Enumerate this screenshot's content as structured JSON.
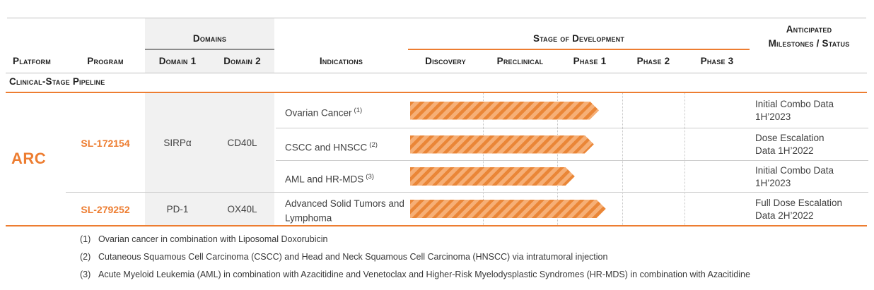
{
  "colors": {
    "accent": "#ED7D31",
    "arrow_stripe": "#EA8637",
    "arrow_base": "#F6AF76",
    "domains_column_bg": "#F1F1F1",
    "grid_line": "#BFBFBF"
  },
  "header": {
    "platform": "Platform",
    "program": "Program",
    "domains_group": "Domains",
    "domain1": "Domain 1",
    "domain2": "Domain 2",
    "indications": "Indications",
    "stage_group": "Stage of Development",
    "stages": [
      "Discovery",
      "Preclinical",
      "Phase 1",
      "Phase 2",
      "Phase 3"
    ],
    "milestones": "Anticipated Milestones / Status"
  },
  "section_title": "Clinical-Stage Pipeline",
  "platform_name": "ARC",
  "programs": [
    {
      "name": "SL-172154",
      "domain1": "SIRPα",
      "domain2": "CD40L"
    },
    {
      "name": "SL-279252",
      "domain1": "PD-1",
      "domain2": "OX40L"
    }
  ],
  "rows": [
    {
      "indication": "Ovarian Cancer",
      "footnote_ref": "(1)",
      "arrow_pct": 55.3,
      "milestone_line1": "Initial Combo Data",
      "milestone_line2": "1H’2023"
    },
    {
      "indication": "CSCC and HNSCC",
      "footnote_ref": "(2)",
      "arrow_pct": 53.8,
      "milestone_line1": "Dose Escalation",
      "milestone_line2": "Data 1H’2022"
    },
    {
      "indication": "AML and HR-MDS",
      "footnote_ref": "(3)",
      "arrow_pct": 48.2,
      "milestone_line1": "Initial Combo Data",
      "milestone_line2": "1H’2023"
    },
    {
      "indication": "Advanced Solid Tumors and Lymphoma",
      "footnote_ref": "",
      "arrow_pct": 57.3,
      "milestone_line1": "Full Dose Escalation",
      "milestone_line2": "Data 2H’2022"
    }
  ],
  "footnotes": [
    {
      "num": "(1)",
      "text": "Ovarian cancer in combination with Liposomal Doxorubicin"
    },
    {
      "num": "(2)",
      "text": "Cutaneous Squamous Cell Carcinoma (CSCC) and Head and Neck Squamous Cell Carcinoma (HNSCC) via intratumoral injection"
    },
    {
      "num": "(3)",
      "text": "Acute Myeloid Leukemia (AML) in combination with Azacitidine and Venetoclax and Higher-Risk Myelodysplastic Syndromes (HR-MDS) in combination with Azacitidine"
    }
  ],
  "chart_data": {
    "type": "bar",
    "title": "Clinical-Stage Pipeline",
    "stage_axis": [
      "Discovery",
      "Preclinical",
      "Phase 1",
      "Phase 2",
      "Phase 3"
    ],
    "grid": "dotted vertical lines at stage boundaries",
    "legend": false,
    "series": [
      {
        "platform": "ARC",
        "program": "SL-172154",
        "domains": [
          "SIRPα",
          "CD40L"
        ],
        "indication": "Ovarian Cancer",
        "reached_stage": "Phase 1",
        "track_fraction": 0.55,
        "milestone": "Initial Combo Data 1H’2023"
      },
      {
        "platform": "ARC",
        "program": "SL-172154",
        "domains": [
          "SIRPα",
          "CD40L"
        ],
        "indication": "CSCC and HNSCC",
        "reached_stage": "Phase 1",
        "track_fraction": 0.54,
        "milestone": "Dose Escalation Data 1H’2022"
      },
      {
        "platform": "ARC",
        "program": "SL-172154",
        "domains": [
          "SIRPα",
          "CD40L"
        ],
        "indication": "AML and HR-MDS",
        "reached_stage": "Phase 1",
        "track_fraction": 0.48,
        "milestone": "Initial Combo Data 1H’2023"
      },
      {
        "platform": "ARC",
        "program": "SL-279252",
        "domains": [
          "PD-1",
          "OX40L"
        ],
        "indication": "Advanced Solid Tumors and Lymphoma",
        "reached_stage": "Phase 1",
        "track_fraction": 0.57,
        "milestone": "Full Dose Escalation Data 2H’2022"
      }
    ]
  }
}
